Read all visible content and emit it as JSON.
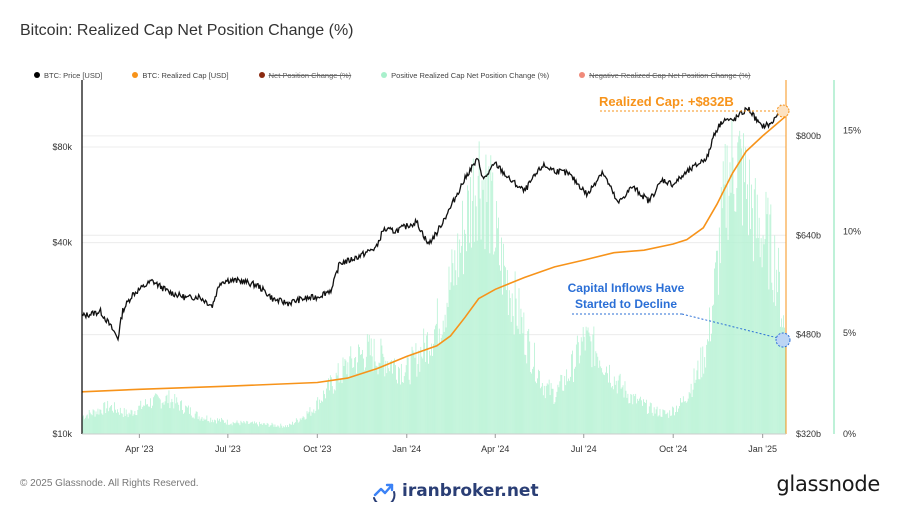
{
  "title": "Bitcoin: Realized Cap Net Position Change (%)",
  "legend": [
    {
      "label": "BTC: Price [USD]",
      "color": "#000000",
      "disabled": false
    },
    {
      "label": "BTC: Realized Cap [USD]",
      "color": "#f7931a",
      "disabled": false
    },
    {
      "label": "Net Position Change (%)",
      "color": "#8b2a10",
      "disabled": true
    },
    {
      "label": "Positive Realized Cap Net Position Change (%)",
      "color": "#a8f0cc",
      "disabled": false
    },
    {
      "label": "Negative Realized Cap Net Position Change (%)",
      "color": "#f08a7a",
      "disabled": true
    }
  ],
  "annotations": {
    "realized_cap": "Realized Cap: +$832B",
    "inflows": [
      "Capital Inflows Have",
      "Started to Decline"
    ]
  },
  "footer": {
    "copyright": "© 2025 Glassnode. All Rights Reserved.",
    "watermark": "iranbroker.net",
    "brand": "glassnode"
  },
  "chart_data": {
    "type": "line",
    "title": "Bitcoin: Realized Cap Net Position Change (%)",
    "x_ticks": [
      "Apr '23",
      "Jul '23",
      "Oct '23",
      "Jan '24",
      "Apr '24",
      "Jul '24",
      "Oct '24",
      "Jan '25"
    ],
    "x_tick_dates": [
      "2023-04-01",
      "2023-07-01",
      "2023-10-01",
      "2024-01-01",
      "2024-04-01",
      "2024-07-01",
      "2024-10-01",
      "2025-01-01"
    ],
    "x_range": [
      "2023-02-01",
      "2025-01-25"
    ],
    "axes": {
      "price": {
        "side": "left",
        "scale": "log",
        "range": [
          10000,
          130000
        ],
        "ticks": [
          {
            "v": 10000,
            "label": "$10k"
          },
          {
            "v": 40000,
            "label": "$40k"
          },
          {
            "v": 80000,
            "label": "$80k"
          }
        ]
      },
      "realized_cap": {
        "side": "right-inner",
        "scale": "linear",
        "unit": "USD billions",
        "range": [
          320,
          890
        ],
        "ticks": [
          {
            "v": 320,
            "label": "$320b"
          },
          {
            "v": 480,
            "label": "$480b"
          },
          {
            "v": 640,
            "label": "$640b"
          },
          {
            "v": 800,
            "label": "$800b"
          }
        ]
      },
      "pct": {
        "side": "right-outer",
        "scale": "linear",
        "range": [
          0,
          17.5
        ],
        "ticks": [
          {
            "v": 0,
            "label": "0%"
          },
          {
            "v": 5,
            "label": "5%"
          },
          {
            "v": 10,
            "label": "10%"
          },
          {
            "v": 15,
            "label": "15%"
          }
        ]
      }
    },
    "series": [
      {
        "name": "BTC: Price [USD]",
        "axis": "price",
        "x": [
          "2023-02-01",
          "2023-02-20",
          "2023-03-10",
          "2023-03-15",
          "2023-03-25",
          "2023-04-14",
          "2023-05-01",
          "2023-05-20",
          "2023-06-01",
          "2023-06-15",
          "2023-06-23",
          "2023-07-01",
          "2023-07-15",
          "2023-08-01",
          "2023-08-17",
          "2023-09-01",
          "2023-09-15",
          "2023-10-01",
          "2023-10-16",
          "2023-10-24",
          "2023-11-01",
          "2023-11-15",
          "2023-12-01",
          "2023-12-08",
          "2023-12-20",
          "2024-01-11",
          "2024-01-23",
          "2024-02-01",
          "2024-02-15",
          "2024-02-28",
          "2024-03-05",
          "2024-03-14",
          "2024-03-20",
          "2024-04-01",
          "2024-04-15",
          "2024-05-01",
          "2024-05-20",
          "2024-06-01",
          "2024-06-15",
          "2024-07-05",
          "2024-07-20",
          "2024-08-05",
          "2024-08-20",
          "2024-09-06",
          "2024-09-20",
          "2024-10-01",
          "2024-10-15",
          "2024-10-30",
          "2024-11-06",
          "2024-11-12",
          "2024-11-22",
          "2024-12-01",
          "2024-12-17",
          "2024-12-30",
          "2025-01-10",
          "2025-01-20",
          "2025-01-25"
        ],
        "values": [
          23500,
          24300,
          20000,
          24500,
          27500,
          30300,
          28000,
          26800,
          27100,
          25300,
          30000,
          30500,
          30300,
          29300,
          26500,
          25800,
          26600,
          27000,
          28500,
          34500,
          35000,
          36500,
          38700,
          44000,
          43500,
          46500,
          39500,
          43000,
          51500,
          62000,
          67000,
          73000,
          63000,
          71000,
          63500,
          58000,
          70000,
          67500,
          66000,
          56500,
          67000,
          53000,
          60000,
          54000,
          63000,
          61000,
          66500,
          72000,
          75000,
          88000,
          98000,
          96500,
          106000,
          93000,
          94500,
          106000,
          104000
        ]
      },
      {
        "name": "BTC: Realized Cap [USD]",
        "axis": "realized_cap",
        "x": [
          "2023-02-01",
          "2023-04-01",
          "2023-07-01",
          "2023-10-01",
          "2023-11-01",
          "2023-12-01",
          "2024-01-01",
          "2024-02-01",
          "2024-02-15",
          "2024-03-01",
          "2024-03-15",
          "2024-04-01",
          "2024-05-01",
          "2024-06-01",
          "2024-07-01",
          "2024-08-01",
          "2024-09-01",
          "2024-10-01",
          "2024-10-15",
          "2024-11-01",
          "2024-11-15",
          "2024-12-01",
          "2024-12-15",
          "2025-01-01",
          "2025-01-25"
        ],
        "values": [
          388,
          392,
          397,
          403,
          410,
          425,
          445,
          462,
          478,
          508,
          538,
          553,
          572,
          589,
          600,
          612,
          616,
          626,
          633,
          652,
          690,
          740,
          775,
          800,
          832
        ]
      },
      {
        "name": "Positive Realized Cap Net Position Change (%)",
        "axis": "pct",
        "x": [
          "2023-02-01",
          "2023-03-01",
          "2023-03-20",
          "2023-04-10",
          "2023-05-01",
          "2023-06-01",
          "2023-07-01",
          "2023-08-01",
          "2023-09-01",
          "2023-09-25",
          "2023-10-15",
          "2023-11-01",
          "2023-11-20",
          "2023-12-10",
          "2024-01-01",
          "2024-01-20",
          "2024-02-05",
          "2024-02-20",
          "2024-03-05",
          "2024-03-14",
          "2024-03-25",
          "2024-04-05",
          "2024-04-20",
          "2024-05-05",
          "2024-05-20",
          "2024-06-01",
          "2024-06-15",
          "2024-07-01",
          "2024-07-15",
          "2024-08-01",
          "2024-08-20",
          "2024-09-10",
          "2024-09-25",
          "2024-10-10",
          "2024-10-25",
          "2024-11-05",
          "2024-11-15",
          "2024-11-25",
          "2024-12-05",
          "2024-12-15",
          "2024-12-25",
          "2025-01-05",
          "2025-01-15",
          "2025-01-25"
        ],
        "values": [
          0.9,
          1.4,
          1.0,
          1.6,
          1.8,
          0.9,
          0.6,
          0.5,
          0.4,
          1.2,
          2.5,
          3.5,
          4.2,
          3.8,
          3.2,
          4.5,
          6.0,
          8.5,
          11.5,
          13.5,
          12.0,
          9.0,
          6.8,
          4.5,
          2.5,
          2.0,
          3.0,
          4.8,
          4.2,
          2.8,
          1.8,
          1.2,
          1.0,
          1.6,
          3.0,
          4.5,
          8.5,
          13.0,
          14.0,
          12.5,
          10.5,
          10.0,
          8.5,
          4.5
        ]
      }
    ]
  }
}
